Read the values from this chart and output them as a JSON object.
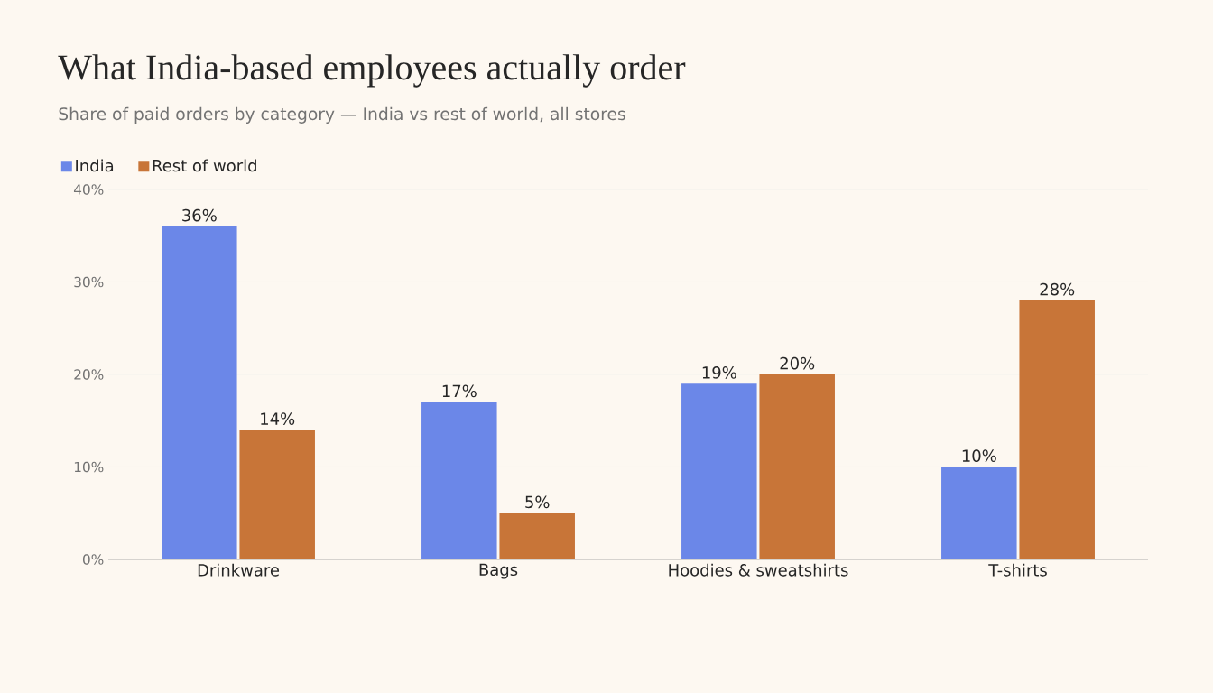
{
  "chart_data": {
    "type": "bar",
    "title": "What India-based employees actually order",
    "subtitle": "Share of paid orders by category — India vs rest of world, all stores",
    "categories": [
      "Drinkware",
      "Bags",
      "Hoodies & sweatshirts",
      "T-shirts"
    ],
    "series": [
      {
        "name": "India",
        "color": "#6b87e8",
        "values": [
          36,
          17,
          19,
          10
        ],
        "value_labels": [
          "36%",
          "17%",
          "19%",
          "10%"
        ]
      },
      {
        "name": "Rest of world",
        "color": "#c87538",
        "values": [
          14,
          5,
          20,
          28
        ],
        "value_labels": [
          "14%",
          "5%",
          "20%",
          "28%"
        ]
      }
    ],
    "ylim": [
      0,
      40
    ],
    "yticks": [
      {
        "value": 0,
        "label": "0%"
      },
      {
        "value": 10,
        "label": "10%"
      },
      {
        "value": 20,
        "label": "20%"
      },
      {
        "value": 30,
        "label": "30%"
      },
      {
        "value": 40,
        "label": "40%"
      }
    ],
    "grid": "y",
    "legend": "top left"
  }
}
